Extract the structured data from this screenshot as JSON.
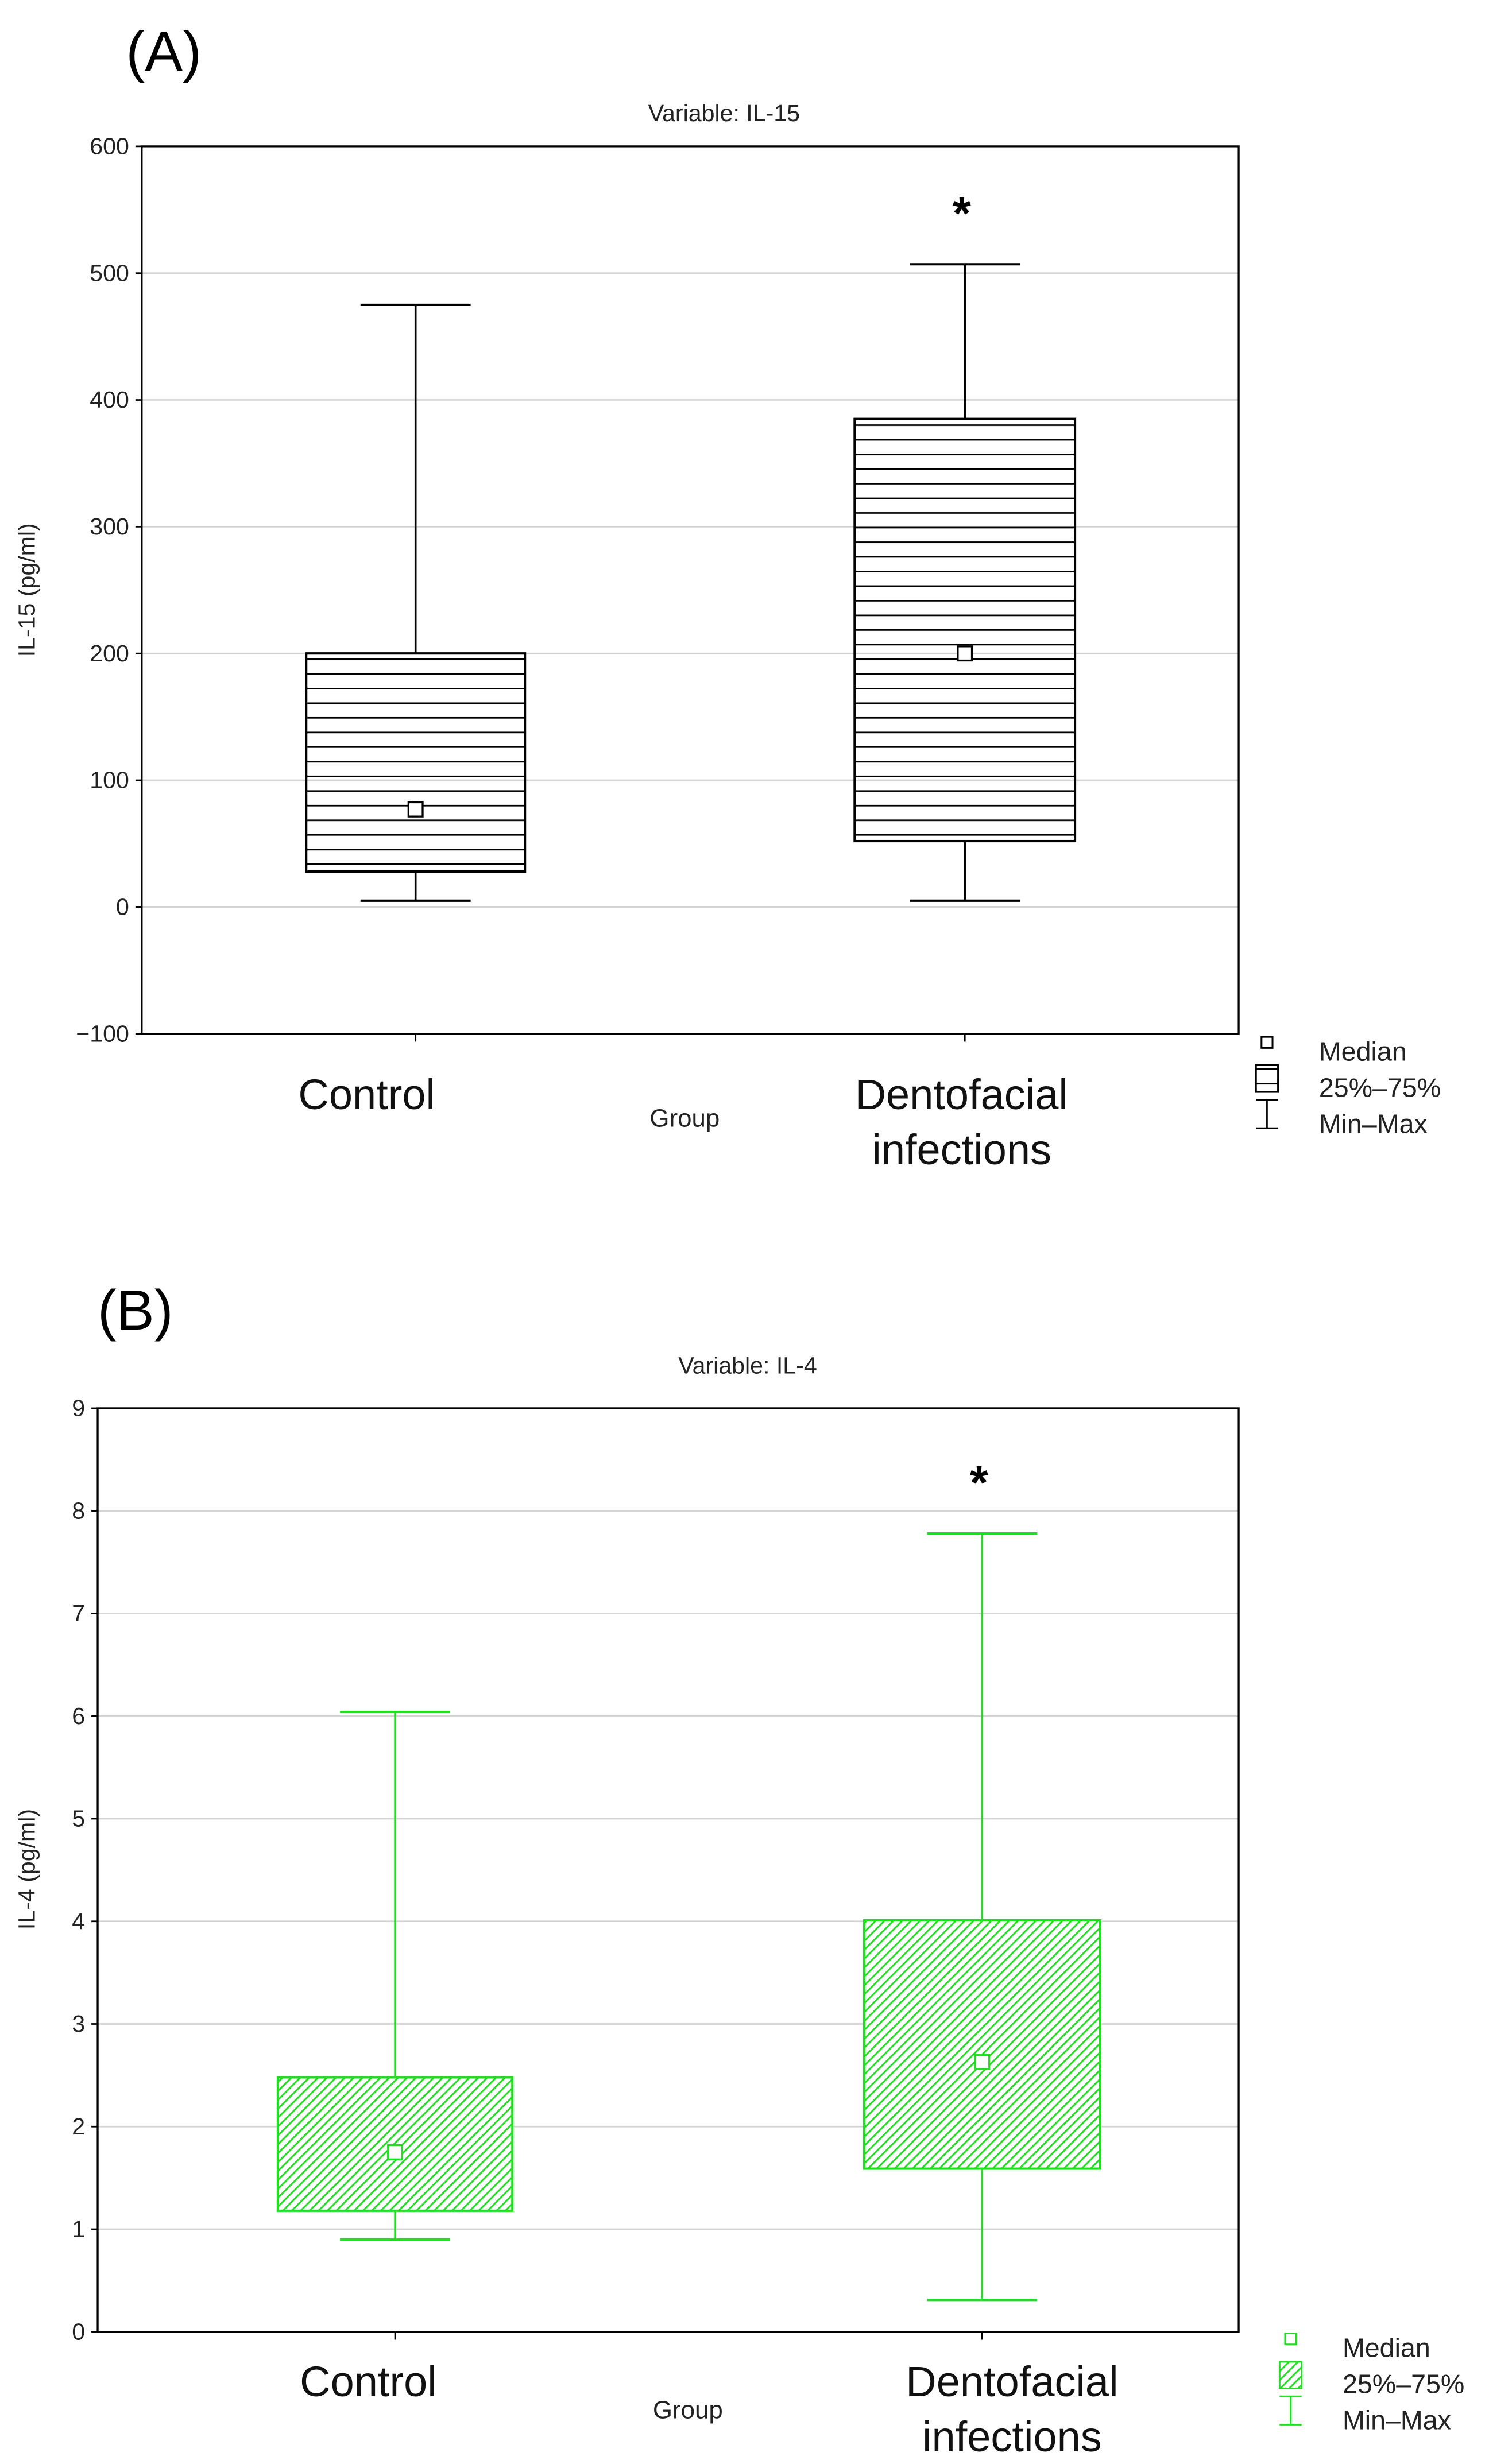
{
  "chart_data": [
    {
      "type": "box",
      "panel_label": "(A)",
      "title": "Variable: IL-15",
      "xlabel": "Group",
      "ylabel": "IL-15 (pg/ml)",
      "ylim": [
        -100,
        600
      ],
      "yticks": [
        -100,
        0,
        100,
        200,
        300,
        400,
        500,
        600
      ],
      "ytick_labels": [
        "−100",
        "0",
        "100",
        "200",
        "300",
        "400",
        "500",
        "600"
      ],
      "grid": true,
      "color": "#000000",
      "fill": "horizontal-lines",
      "categories": [
        "Control",
        "Dentofacial infections"
      ],
      "category_lines": [
        [
          "Control"
        ],
        [
          "Dentofacial",
          "infections"
        ]
      ],
      "series": [
        {
          "name": "Control",
          "min": 5,
          "q1": 28,
          "median": 77,
          "q3": 200,
          "max": 475,
          "annotation": ""
        },
        {
          "name": "Dentofacial infections",
          "min": 5,
          "q1": 52,
          "median": 200,
          "q3": 385,
          "max": 507,
          "annotation": "*"
        }
      ],
      "legend": {
        "position": "bottom-right",
        "items": [
          "Median",
          "25%–75%",
          "Min–Max"
        ]
      }
    },
    {
      "type": "box",
      "panel_label": "(B)",
      "title": "Variable: IL-4",
      "xlabel": "Group",
      "ylabel": "IL-4 (pg/ml)",
      "ylim": [
        0,
        9
      ],
      "yticks": [
        0,
        1,
        2,
        3,
        4,
        5,
        6,
        7,
        8,
        9
      ],
      "ytick_labels": [
        "0",
        "1",
        "2",
        "3",
        "4",
        "5",
        "6",
        "7",
        "8",
        "9"
      ],
      "grid": true,
      "color": "#22dd22",
      "fill": "diagonal-hatch",
      "categories": [
        "Control",
        "Dentofacial infections"
      ],
      "category_lines": [
        [
          "Control"
        ],
        [
          "Dentofacial",
          "infections"
        ]
      ],
      "series": [
        {
          "name": "Control",
          "min": 0.9,
          "q1": 1.18,
          "median": 1.75,
          "q3": 2.48,
          "max": 6.04,
          "annotation": ""
        },
        {
          "name": "Dentofacial infections",
          "min": 0.31,
          "q1": 1.59,
          "median": 2.63,
          "q3": 4.01,
          "max": 7.78,
          "annotation": "*"
        }
      ],
      "legend": {
        "position": "bottom-right",
        "items": [
          "Median",
          "25%–75%",
          "Min–Max"
        ]
      }
    }
  ]
}
